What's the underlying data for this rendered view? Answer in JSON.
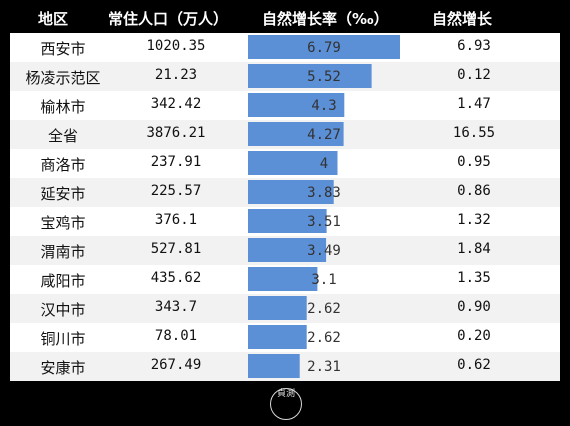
{
  "table": {
    "headers": {
      "region": "地区",
      "population": "常住人口（万人）",
      "rate": "自然增长率（‰）",
      "increase": "自然增长"
    },
    "rows": [
      {
        "region": "西安市",
        "population": "1020.35",
        "rate": "6.79",
        "increase": "6.93"
      },
      {
        "region": "杨凌示范区",
        "population": "21.23",
        "rate": "5.52",
        "increase": "0.12"
      },
      {
        "region": "榆林市",
        "population": "342.42",
        "rate": "4.3",
        "increase": "1.47"
      },
      {
        "region": "全省",
        "population": "3876.21",
        "rate": "4.27",
        "increase": "16.55"
      },
      {
        "region": "商洛市",
        "population": "237.91",
        "rate": "4",
        "increase": "0.95"
      },
      {
        "region": "延安市",
        "population": "225.57",
        "rate": "3.83",
        "increase": "0.86"
      },
      {
        "region": "宝鸡市",
        "population": "376.1",
        "rate": "3.51",
        "increase": "1.32"
      },
      {
        "region": "渭南市",
        "population": "527.81",
        "rate": "3.49",
        "increase": "1.84"
      },
      {
        "region": "咸阳市",
        "population": "435.62",
        "rate": "3.1",
        "increase": "1.35"
      },
      {
        "region": "汉中市",
        "population": "343.7",
        "rate": "2.62",
        "increase": "0.90"
      },
      {
        "region": "铜川市",
        "population": "78.01",
        "rate": "2.62",
        "increase": "0.20"
      },
      {
        "region": "安康市",
        "population": "267.49",
        "rate": "2.31",
        "increase": "0.62"
      }
    ]
  },
  "chart_data": {
    "type": "bar",
    "categories": [
      "西安市",
      "杨凌示范区",
      "榆林市",
      "全省",
      "商洛市",
      "延安市",
      "宝鸡市",
      "渭南市",
      "咸阳市",
      "汉中市",
      "铜川市",
      "安康市"
    ],
    "values": [
      6.79,
      5.52,
      4.3,
      4.27,
      4,
      3.83,
      3.51,
      3.49,
      3.1,
      2.62,
      2.62,
      2.31
    ],
    "value_labels": [
      "6.79",
      "5.52",
      "4.3",
      "4.27",
      "4",
      "3.83",
      "3.51",
      "3.49",
      "3.1",
      "2.62",
      "2.62",
      "2.31"
    ],
    "title": "",
    "xlabel": "",
    "ylabel": "自然增长率（‰）",
    "xlim": [
      0,
      6.79
    ],
    "grid": false,
    "bar_color": "#5b8fd6"
  },
  "watermark": {
    "text": "貞測"
  }
}
